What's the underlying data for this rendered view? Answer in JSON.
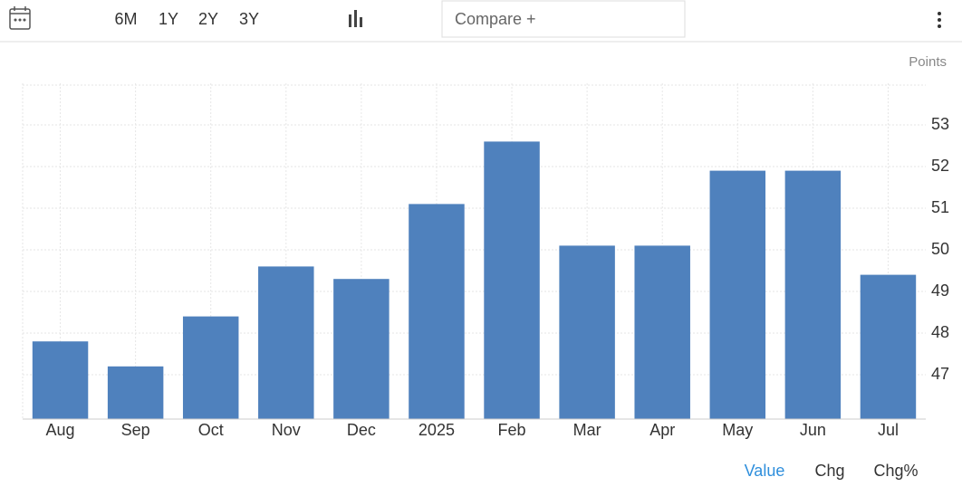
{
  "toolbar": {
    "ranges": [
      "6M",
      "1Y",
      "2Y",
      "3Y"
    ],
    "compare": "Compare +"
  },
  "view_tabs": [
    "Value",
    "Chg",
    "Chg%"
  ],
  "chart_data": {
    "type": "bar",
    "y_axis_label": "Points",
    "categories": [
      "Aug",
      "Sep",
      "Oct",
      "Nov",
      "Dec",
      "2025",
      "Feb",
      "Mar",
      "Apr",
      "May",
      "Jun",
      "Jul"
    ],
    "values": [
      47.8,
      47.2,
      48.4,
      49.6,
      49.3,
      51.1,
      52.6,
      50.1,
      50.1,
      51.9,
      51.9,
      49.4
    ],
    "color": "#4f81bd",
    "ylim": [
      46,
      54
    ],
    "yticks": [
      47,
      48,
      49,
      50,
      51,
      52,
      53
    ],
    "grid": true
  }
}
